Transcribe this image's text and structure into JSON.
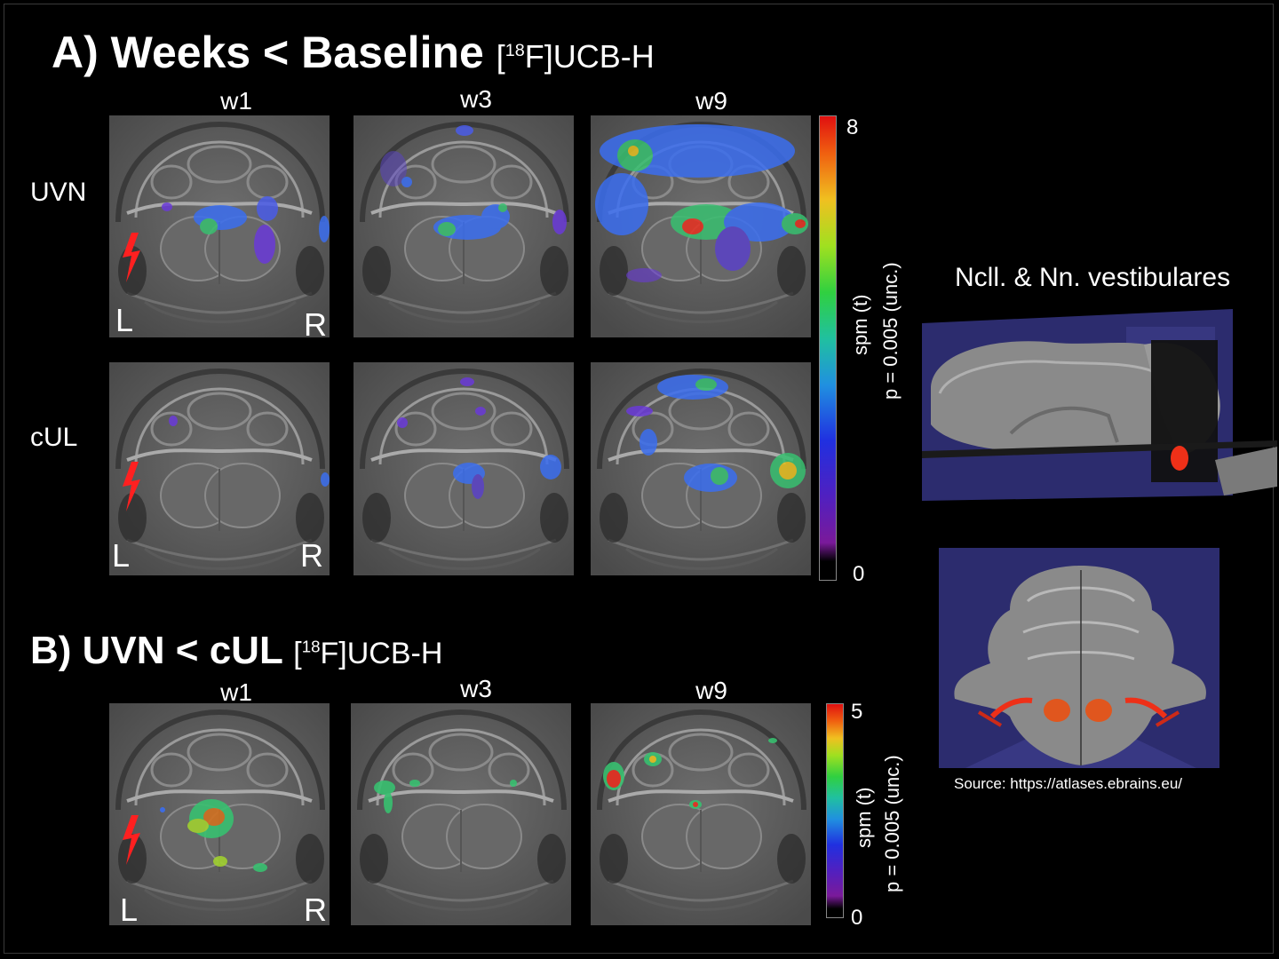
{
  "section_a": {
    "letter_title": "A) Weeks < Baseline",
    "tracer_prefix": "[",
    "tracer_sup": "18",
    "tracer_suffix": "F]UCB-H",
    "columns": [
      "w1",
      "w3",
      "w9"
    ],
    "rows": [
      "UVN",
      "cUL"
    ],
    "colorbar": {
      "max": "8",
      "min": "0",
      "label_stat": "spm (t)",
      "label_p": "p = 0.005 (unc.)"
    }
  },
  "section_b": {
    "letter_title": "B) UVN < cUL",
    "tracer_prefix": "[",
    "tracer_sup": "18",
    "tracer_suffix": "F]UCB-H",
    "columns": [
      "w1",
      "w3",
      "w9"
    ],
    "colorbar": {
      "max": "5",
      "min": "0",
      "label_stat": "spm (t)",
      "label_p": "p = 0.005 (unc.)"
    }
  },
  "orientation": {
    "left": "L",
    "right": "R"
  },
  "atlas": {
    "title": "Ncll. & Nn. vestibulares",
    "source": "Source: https://atlases.ebrains.eu/"
  },
  "colors": {
    "background": "#000000",
    "lesion_marker": "#ff2020",
    "nuclei_highlight": "#e0561e",
    "atlas_bg": "#2c2c6e"
  }
}
